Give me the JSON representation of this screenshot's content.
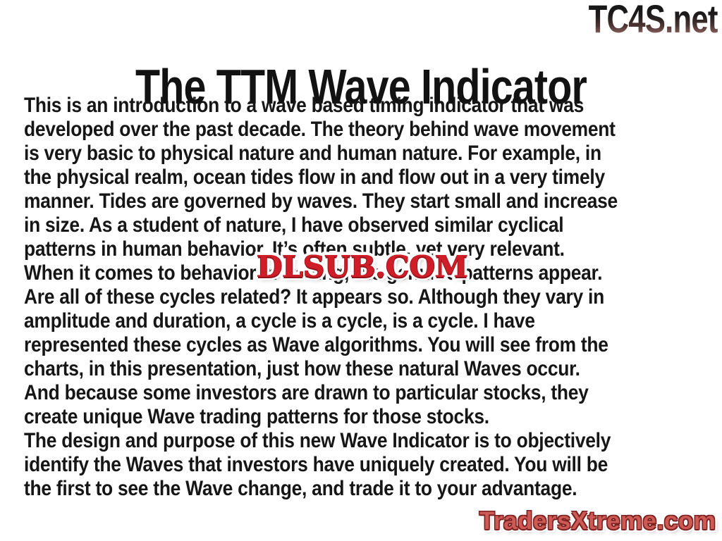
{
  "slide": {
    "title": "The TTM Wave Indicator",
    "body_lines": [
      "This is an introduction to a wave based timing indicator that was",
      "developed over the past decade. The theory behind wave movement",
      "is very basic to physical nature and human nature. For example, in",
      "the physical realm, ocean tides flow in and flow out in a very timely",
      "manner. Tides are governed by waves. They start small and increase",
      "in size. As a student of nature, I have observed similar cyclical",
      "patterns in human behavior. It’s often subtle, yet very relevant.",
      "When it comes to behavior in trading, the genuine patterns appear.",
      "Are all of these cycles related? It appears so. Although they vary in",
      "amplitude and duration, a cycle is a cycle, is a cycle. I have",
      "represented these cycles as Wave algorithms. You will see from the",
      "charts, in this presentation, just how these natural Waves occur.",
      "And because some investors are drawn to particular stocks, they",
      "create unique Wave trading patterns for those stocks.",
      "The design and purpose of this new Wave Indicator is to objectively",
      "identify the Waves that investors have uniquely created. You will be",
      "the first to see the Wave change, and trade it to your advantage."
    ]
  },
  "watermarks": {
    "top_right_logo": "TC4S.net",
    "center_overlay": "DLSUB.COM",
    "bottom_right_site": "TradersXtreme.com"
  },
  "colors": {
    "background": "#ffffff",
    "text": "#161616",
    "dlsub_red": "#cf1e28",
    "traders_red": "#cd5a55",
    "tc4s_gradient_top": "#141414",
    "tc4s_gradient_bottom": "#9c6f6a"
  }
}
